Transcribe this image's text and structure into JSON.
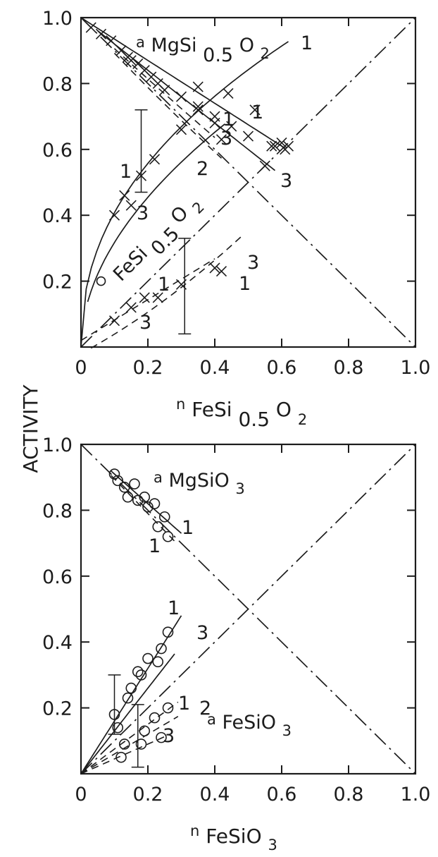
{
  "y_axis_label": "ACTIVITY",
  "chart_data": [
    {
      "type": "scatter",
      "xlabel": {
        "main": "n",
        "sub": "FeSi",
        "sub2": "0.5",
        "sub3": "O",
        "sub4": "2"
      },
      "ylabel": "ACTIVITY",
      "xlim": [
        0,
        1.0
      ],
      "ylim": [
        0,
        1.0
      ],
      "xticks": [
        "0",
        "0.2",
        "0.4",
        "0.6",
        "0.8",
        "1.0"
      ],
      "yticks": [
        "0.2",
        "0.4",
        "0.6",
        "0.8",
        "1.0"
      ],
      "grid": false,
      "annotations": [
        {
          "text": "a",
          "sub": "MgSi",
          "sub2": "0.5",
          "sub3": "O",
          "sub4": "2"
        },
        {
          "text": "FeSi",
          "sub": "0.5",
          "sub2": "O",
          "sub3": "2"
        }
      ],
      "curve_labels": [
        "1",
        "1",
        "1",
        "3",
        "2",
        "3",
        "1",
        "3",
        "3",
        "1",
        "1",
        "3"
      ],
      "series": [
        {
          "marker": "x",
          "x": [
            0.03,
            0.06,
            0.09,
            0.12,
            0.14,
            0.15,
            0.17,
            0.19,
            0.21,
            0.23,
            0.25,
            0.3,
            0.35,
            0.4,
            0.45,
            0.5,
            0.57,
            0.61
          ],
          "y": [
            0.97,
            0.95,
            0.93,
            0.9,
            0.88,
            0.87,
            0.86,
            0.84,
            0.82,
            0.8,
            0.78,
            0.76,
            0.73,
            0.7,
            0.67,
            0.64,
            0.61,
            0.6
          ]
        },
        {
          "marker": "x",
          "x": [
            0.1,
            0.13,
            0.15,
            0.18,
            0.22,
            0.3,
            0.35,
            0.4,
            0.42,
            0.55,
            0.58
          ],
          "y": [
            0.4,
            0.46,
            0.43,
            0.52,
            0.57,
            0.66,
            0.72,
            0.68,
            0.63,
            0.55,
            0.61
          ]
        },
        {
          "marker": "x",
          "x": [
            0.35,
            0.44,
            0.52,
            0.6,
            0.62
          ],
          "y": [
            0.79,
            0.77,
            0.72,
            0.62,
            0.61
          ]
        },
        {
          "marker": "x",
          "x": [
            0.1,
            0.15,
            0.19,
            0.23,
            0.3,
            0.4,
            0.42
          ],
          "y": [
            0.08,
            0.12,
            0.15,
            0.15,
            0.19,
            0.24,
            0.23
          ]
        }
      ],
      "reference_lines": [
        "ideal activity a = n",
        "ideal activity a = 1 - n"
      ],
      "error_bars": [
        {
          "x": 0.18,
          "ylow": 0.47,
          "yhigh": 0.72
        },
        {
          "x": 0.31,
          "ylow": 0.04,
          "yhigh": 0.33
        }
      ],
      "open_points": [
        {
          "x": 0.06,
          "y": 0.2
        }
      ]
    },
    {
      "type": "scatter",
      "xlabel": {
        "main": "n",
        "sub": "FeSiO",
        "sub2": "3"
      },
      "ylabel": "ACTIVITY",
      "xlim": [
        0,
        1.0
      ],
      "ylim": [
        0,
        1.0
      ],
      "xticks": [
        "0",
        "0.2",
        "0.4",
        "0.6",
        "0.8",
        "1.0"
      ],
      "yticks": [
        "0.2",
        "0.4",
        "0.6",
        "0.8",
        "1.0"
      ],
      "grid": false,
      "annotations": [
        {
          "text": "a",
          "sub": "MgSiO",
          "sub2": "3"
        },
        {
          "text": "a",
          "sub": "FeSiO",
          "sub2": "3"
        }
      ],
      "curve_labels": [
        "1",
        "1",
        "1",
        "3",
        "1",
        "2",
        "3"
      ],
      "series": [
        {
          "marker": "o",
          "x": [
            0.1,
            0.11,
            0.13,
            0.14,
            0.16,
            0.17,
            0.19,
            0.2,
            0.22,
            0.23,
            0.25,
            0.26
          ],
          "y": [
            0.91,
            0.89,
            0.87,
            0.84,
            0.88,
            0.83,
            0.84,
            0.81,
            0.82,
            0.75,
            0.78,
            0.72
          ]
        },
        {
          "marker": "o",
          "x": [
            0.1,
            0.11,
            0.14,
            0.15,
            0.17,
            0.18,
            0.2,
            0.23,
            0.24,
            0.26
          ],
          "y": [
            0.18,
            0.14,
            0.23,
            0.26,
            0.31,
            0.3,
            0.35,
            0.34,
            0.38,
            0.43
          ]
        },
        {
          "marker": "o",
          "x": [
            0.12,
            0.13,
            0.18,
            0.19,
            0.22,
            0.24,
            0.26
          ],
          "y": [
            0.05,
            0.09,
            0.09,
            0.13,
            0.17,
            0.11,
            0.2
          ]
        }
      ],
      "reference_lines": [
        "ideal activity a = n",
        "ideal activity a = 1 - n"
      ],
      "error_bars": [
        {
          "x": 0.1,
          "ylow": 0.12,
          "yhigh": 0.3
        },
        {
          "x": 0.17,
          "ylow": 0.02,
          "yhigh": 0.21
        }
      ]
    }
  ]
}
